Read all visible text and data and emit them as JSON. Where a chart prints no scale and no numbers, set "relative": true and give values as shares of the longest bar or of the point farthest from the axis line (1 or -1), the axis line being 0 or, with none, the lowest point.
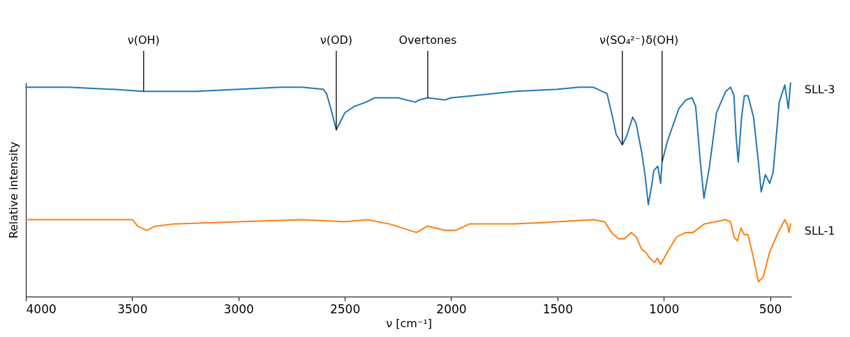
{
  "chart_data": {
    "type": "line",
    "relative": true,
    "xlabel": "ν [cm⁻¹]",
    "ylabel": "Relative intensity",
    "xlim": [
      4000,
      400
    ],
    "xticks": [
      4000,
      3500,
      3000,
      2500,
      2000,
      1500,
      1000,
      500
    ],
    "grid": false,
    "legend": false,
    "line_style": "solid",
    "marker": "none",
    "annotations": [
      {
        "text": "ν(OH)",
        "x": 3446,
        "y": 0.96
      },
      {
        "text": "ν(OD)",
        "x": 2540,
        "y": 0.78
      },
      {
        "text": "Overtones",
        "x": 2110,
        "y": 0.93
      },
      {
        "text": "ν(SO₄²⁻)",
        "x": 1195,
        "y": 0.71
      },
      {
        "text": "δ(OH)",
        "x": 1008,
        "y": 0.63
      }
    ],
    "series": [
      {
        "name": "SLL-3",
        "color": "#1f77b4",
        "x": [
          4000,
          3800,
          3600,
          3587,
          3446,
          3400,
          3200,
          3000,
          2800,
          2700,
          2602,
          2586,
          2566,
          2540,
          2500,
          2455,
          2400,
          2360,
          2250,
          2169,
          2150,
          2110,
          2028,
          2000,
          1900,
          1700,
          1500,
          1400,
          1333,
          1267,
          1241,
          1224,
          1195,
          1175,
          1146,
          1130,
          1103,
          1087,
          1073,
          1057,
          1047,
          1028,
          1015,
          1008,
          982,
          929,
          896,
          867,
          850,
          830,
          811,
          785,
          752,
          709,
          686,
          670,
          660,
          650,
          634,
          621,
          604,
          578,
          555,
          542,
          522,
          502,
          486,
          457,
          431,
          414,
          404
        ],
        "values": [
          0.98,
          0.98,
          0.97,
          0.97,
          0.96,
          0.96,
          0.96,
          0.97,
          0.98,
          0.98,
          0.97,
          0.95,
          0.88,
          0.78,
          0.86,
          0.89,
          0.91,
          0.93,
          0.93,
          0.91,
          0.92,
          0.93,
          0.92,
          0.93,
          0.94,
          0.96,
          0.97,
          0.98,
          0.98,
          0.95,
          0.84,
          0.76,
          0.71,
          0.75,
          0.84,
          0.81,
          0.67,
          0.56,
          0.43,
          0.52,
          0.59,
          0.61,
          0.53,
          0.63,
          0.73,
          0.88,
          0.92,
          0.93,
          0.89,
          0.65,
          0.46,
          0.61,
          0.86,
          0.96,
          0.98,
          0.94,
          0.75,
          0.63,
          0.84,
          0.94,
          0.94,
          0.84,
          0.63,
          0.49,
          0.57,
          0.53,
          0.58,
          0.91,
          0.99,
          0.88,
          1.0
        ]
      },
      {
        "name": "SLL-1",
        "color": "#ff7f0e",
        "x": [
          4000,
          3700,
          3498,
          3475,
          3432,
          3390,
          3301,
          3000,
          2700,
          2500,
          2392,
          2291,
          2163,
          2110,
          2031,
          1979,
          1913,
          1700,
          1500,
          1333,
          1278,
          1246,
          1213,
          1186,
          1153,
          1130,
          1103,
          1087,
          1066,
          1044,
          1030,
          1015,
          982,
          939,
          896,
          863,
          809,
          709,
          686,
          670,
          654,
          637,
          621,
          604,
          578,
          555,
          533,
          502,
          480,
          457,
          431,
          420,
          411,
          404
        ],
        "values": [
          0.36,
          0.36,
          0.36,
          0.33,
          0.31,
          0.33,
          0.34,
          0.35,
          0.36,
          0.35,
          0.36,
          0.34,
          0.3,
          0.33,
          0.31,
          0.31,
          0.34,
          0.34,
          0.35,
          0.36,
          0.35,
          0.3,
          0.27,
          0.27,
          0.3,
          0.28,
          0.22,
          0.21,
          0.18,
          0.16,
          0.18,
          0.15,
          0.21,
          0.28,
          0.3,
          0.3,
          0.34,
          0.36,
          0.35,
          0.28,
          0.26,
          0.32,
          0.29,
          0.29,
          0.18,
          0.07,
          0.09,
          0.21,
          0.26,
          0.31,
          0.36,
          0.34,
          0.3,
          0.34
        ]
      }
    ]
  }
}
